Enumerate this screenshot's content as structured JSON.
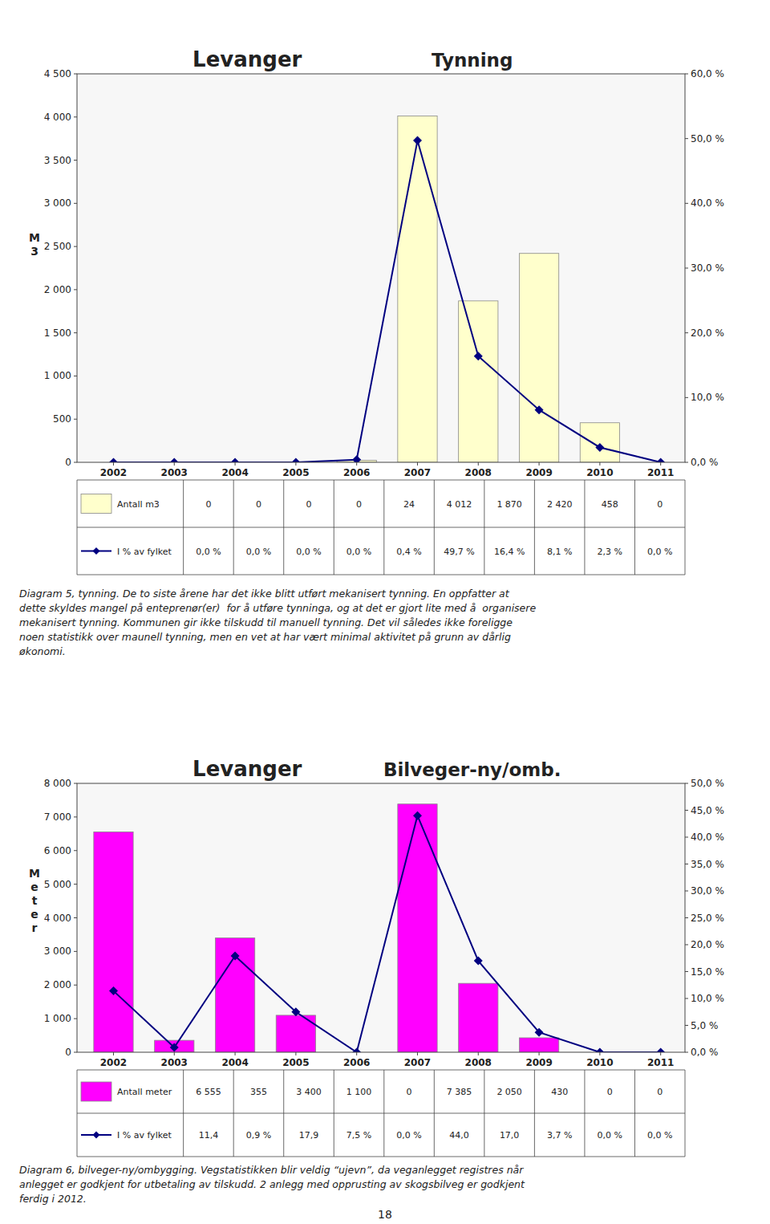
{
  "chart_data": [
    {
      "type": "bar",
      "title": "Levanger",
      "subtitle": "Tynning",
      "ylabel": "M3",
      "categories": [
        "2002",
        "2003",
        "2004",
        "2005",
        "2006",
        "2007",
        "2008",
        "2009",
        "2010",
        "2011"
      ],
      "series": [
        {
          "name": "Antall m3",
          "type": "bar",
          "color": "#ffffcc",
          "values": [
            0,
            0,
            0,
            0,
            24,
            4012,
            1870,
            2420,
            458,
            0
          ],
          "value_labels": [
            "0",
            "0",
            "0",
            "0",
            "24",
            "4 012",
            "1 870",
            "2 420",
            "458",
            "0"
          ]
        },
        {
          "name": "I % av fylket",
          "type": "line",
          "axis": "y2",
          "color": "#000080",
          "marker": "diamond",
          "values": [
            0.0,
            0.0,
            0.0,
            0.0,
            0.4,
            49.7,
            16.4,
            8.1,
            2.3,
            0.0
          ],
          "value_labels": [
            "0,0 %",
            "0,0 %",
            "0,0 %",
            "0,0 %",
            "0,4 %",
            "49,7 %",
            "16,4 %",
            "8,1 %",
            "2,3 %",
            "0,0 %"
          ]
        }
      ],
      "ylim": [
        0,
        4500
      ],
      "yticks": [
        0,
        500,
        {
          "value": 1000,
          "label": "1 000"
        },
        {
          "value": 1500,
          "label": "1 500"
        },
        {
          "value": 2000,
          "label": "2 000"
        },
        {
          "value": 2500,
          "label": "2 500"
        },
        {
          "value": 3000,
          "label": "3 000"
        },
        {
          "value": 3500,
          "label": "3 500"
        },
        {
          "value": 4000,
          "label": "4 000"
        },
        {
          "value": 4500,
          "label": "4 500"
        }
      ],
      "y2lim": [
        0,
        60.0
      ],
      "y2ticks": [
        {
          "value": 0.0,
          "label": "0,0 %"
        },
        {
          "value": 10.0,
          "label": "10,0 %"
        },
        {
          "value": 20.0,
          "label": "20,0 %"
        },
        {
          "value": 30.0,
          "label": "30,0 %"
        },
        {
          "value": 40.0,
          "label": "40,0 %"
        },
        {
          "value": 50.0,
          "label": "50,0 %"
        },
        {
          "value": 60.0,
          "label": "60,0 %"
        }
      ],
      "grid": false
    },
    {
      "type": "bar",
      "title": "Levanger",
      "subtitle": "Bilveger-ny/omb.",
      "ylabel": "Meter",
      "categories": [
        "2002",
        "2003",
        "2004",
        "2005",
        "2006",
        "2007",
        "2008",
        "2009",
        "2010",
        "2011"
      ],
      "series": [
        {
          "name": "Antall meter",
          "type": "bar",
          "color": "#ff00ff",
          "values": [
            6555,
            355,
            3400,
            1100,
            0,
            7385,
            2050,
            430,
            0,
            0
          ],
          "value_labels": [
            "6 555",
            "355",
            "3 400",
            "1 100",
            "0",
            "7 385",
            "2 050",
            "430",
            "0",
            "0"
          ]
        },
        {
          "name": "I % av fylket",
          "type": "line",
          "axis": "y2",
          "color": "#000080",
          "marker": "diamond",
          "values": [
            11.4,
            0.9,
            17.9,
            7.5,
            0.0,
            44.0,
            17.0,
            3.7,
            0.0,
            0.0
          ],
          "value_labels": [
            "11,4",
            "0,9 %",
            "17,9",
            "7,5 %",
            "0,0 %",
            "44,0",
            "17,0",
            "3,7 %",
            "0,0 %",
            "0,0 %"
          ]
        }
      ],
      "ylim": [
        0,
        8000
      ],
      "yticks": [
        0,
        {
          "value": 1000,
          "label": "1 000"
        },
        {
          "value": 2000,
          "label": "2 000"
        },
        {
          "value": 3000,
          "label": "3 000"
        },
        {
          "value": 4000,
          "label": "4 000"
        },
        {
          "value": 5000,
          "label": "5 000"
        },
        {
          "value": 6000,
          "label": "6 000"
        },
        {
          "value": 7000,
          "label": "7 000"
        },
        {
          "value": 8000,
          "label": "8 000"
        }
      ],
      "y2lim": [
        0,
        50.0
      ],
      "y2ticks": [
        {
          "value": 0.0,
          "label": "0,0 %"
        },
        {
          "value": 5.0,
          "label": "5,0 %"
        },
        {
          "value": 10.0,
          "label": "10,0 %"
        },
        {
          "value": 15.0,
          "label": "15,0 %"
        },
        {
          "value": 20.0,
          "label": "20,0 %"
        },
        {
          "value": 25.0,
          "label": "25,0 %"
        },
        {
          "value": 30.0,
          "label": "30,0 %"
        },
        {
          "value": 35.0,
          "label": "35,0 %"
        },
        {
          "value": 40.0,
          "label": "40,0 %"
        },
        {
          "value": 45.0,
          "label": "45,0 %"
        },
        {
          "value": 50.0,
          "label": "50,0 %"
        }
      ],
      "grid": false
    }
  ],
  "texts": [
    "Diagram 5, tynning. De to siste årene har det ikke blitt utført mekanisert tynning. En oppfatter at\ndette skyldes mangel på enteprenør(er)  for å utføre tynninga, og at det er gjort lite med å  organisere\nmekanisert tynning. Kommunen gir ikke tilskudd til manuell tynning. Det vil således ikke foreligge\nnoen statistikk over maunell tynning, men en vet at har vært minimal aktivitet på grunn av dårlig\nøkonomi.",
    "Diagram 6, bilveger-ny/ombygging. Vegstatistikken blir veldig “ujevn”, da veganlegget registres når\nanlegget er godkjent for utbetaling av tilskudd. 2 anlegg med opprusting av skogsbilveg er godkjent\nferdig i 2012."
  ],
  "page_number": "18"
}
